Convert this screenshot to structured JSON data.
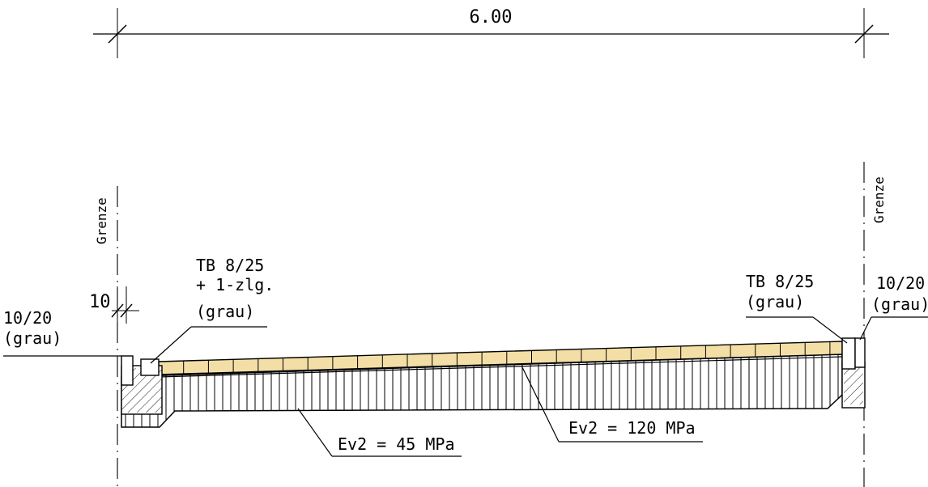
{
  "dimension": {
    "total": "6.00",
    "small": "10"
  },
  "boundary": {
    "left": "Grenze",
    "right": "Grenze"
  },
  "labels": {
    "left_curb_size": "10/20",
    "left_curb_color": "(grau)",
    "tb_left_1": "TB 8/25",
    "tb_left_2": "+ 1-zlg.",
    "tb_left_3": "(grau)",
    "tb_right_1": "TB 8/25",
    "tb_right_2": "(grau)",
    "right_curb_size": "10/20",
    "right_curb_color": "(grau)",
    "ev2_subgrade": "Ev2 = 45 MPa",
    "ev2_base": "Ev2 = 120 MPa"
  },
  "colors": {
    "paving": "#f3dfa6",
    "line": "#000000",
    "background": "#ffffff"
  }
}
